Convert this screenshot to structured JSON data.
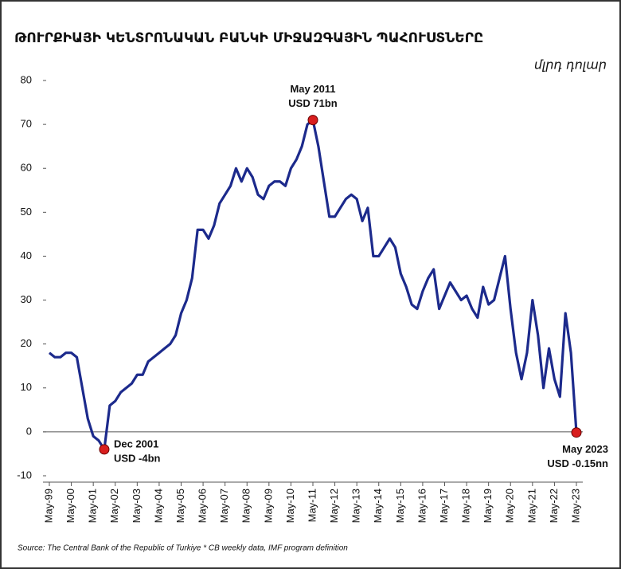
{
  "chart_data": {
    "type": "line",
    "title": "ԹՈՒՐՔԻԱՅԻ ԿԵՆՏՐՈՆԱԿԱՆ ԲԱՆԿԻ ՄԻՋԱԶԳԱՅԻՆ ՊԱՀՈՒՍՏՆԵՐԸ",
    "subtitle": "մլրդ դոլար",
    "source": "Source: The Central Bank of the Republic of Turkiye * CB weekly data, IMF program definition",
    "color": "#1c2a8c",
    "categories": [
      "May-99",
      null,
      null,
      null,
      "May-00",
      null,
      null,
      null,
      "May-01",
      null,
      null,
      null,
      "May-02",
      null,
      null,
      null,
      "May-03",
      null,
      null,
      null,
      "May-04",
      null,
      null,
      null,
      "May-05",
      null,
      null,
      null,
      "May-06",
      null,
      null,
      null,
      "May-07",
      null,
      null,
      null,
      "May-08",
      null,
      null,
      null,
      "May-09",
      null,
      null,
      null,
      "May-10",
      null,
      null,
      null,
      "May-11",
      null,
      null,
      null,
      "May-12",
      null,
      null,
      null,
      "May-13",
      null,
      null,
      null,
      "May-14",
      null,
      null,
      null,
      "May-15",
      null,
      null,
      null,
      "May-16",
      null,
      null,
      null,
      "May-17",
      null,
      null,
      null,
      "May-18",
      null,
      null,
      null,
      "May-19",
      null,
      null,
      null,
      "May-20",
      null,
      null,
      null,
      "May-21",
      null,
      null,
      null,
      "May-22",
      null,
      null,
      null,
      "May-23"
    ],
    "values": [
      18,
      17,
      17,
      18,
      18,
      17,
      10,
      3,
      -1,
      -2,
      -4,
      6,
      7,
      9,
      10,
      11,
      13,
      13,
      16,
      17,
      18,
      19,
      20,
      22,
      27,
      30,
      35,
      46,
      46,
      44,
      47,
      52,
      54,
      56,
      60,
      57,
      60,
      58,
      54,
      53,
      56,
      57,
      57,
      56,
      60,
      62,
      65,
      70,
      71,
      65,
      57,
      49,
      49,
      51,
      53,
      54,
      53,
      48,
      51,
      40,
      40,
      42,
      44,
      42,
      36,
      33,
      29,
      28,
      32,
      35,
      37,
      28,
      31,
      34,
      32,
      30,
      31,
      28,
      26,
      33,
      29,
      30,
      35,
      40,
      28,
      18,
      12,
      18,
      30,
      22,
      10,
      19,
      12,
      8,
      27,
      18,
      -0.15
    ],
    "annotations": [
      {
        "lines": [
          "Dec 2001",
          "USD -4bn"
        ],
        "value": -4
      },
      {
        "lines": [
          "May 2011",
          "USD 71bn"
        ],
        "value": 71
      },
      {
        "lines": [
          "May 2023",
          "USD -0.15nn"
        ],
        "value": -0.15
      }
    ],
    "marker_color": "#d81e1e",
    "ylim": [
      -10,
      80
    ],
    "yticks": [
      -10,
      0,
      10,
      20,
      30,
      40,
      50,
      60,
      70,
      80
    ]
  }
}
